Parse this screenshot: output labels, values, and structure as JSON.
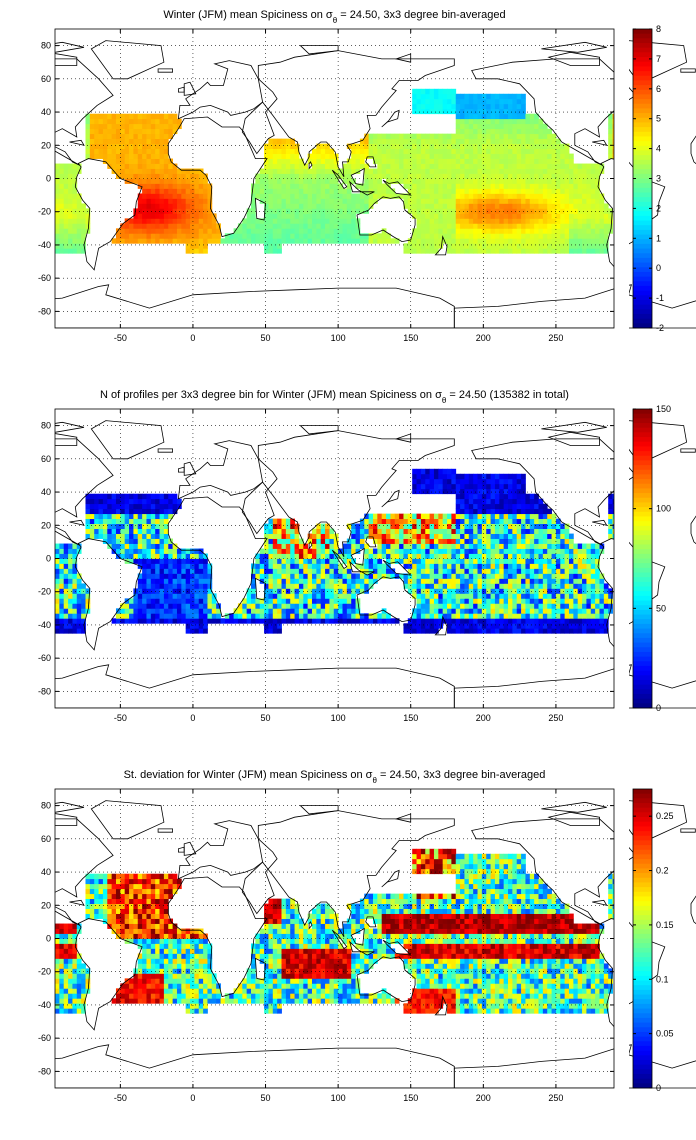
{
  "chart_data": [
    {
      "type": "heatmap",
      "title": "Winter (JFM) mean Spiciness on σθ = 24.50, 3x3 degree bin-averaged",
      "title_parts": {
        "pre": "Winter (JFM) mean Spiciness on σ",
        "sub": "θ",
        "post": " = 24.50, 3x3 degree bin-averaged"
      },
      "xlabel": "",
      "ylabel": "",
      "xlim": [
        -95,
        290
      ],
      "ylim": [
        -90,
        90
      ],
      "xticks": [
        "-50",
        "0",
        "50",
        "100",
        "150",
        "200",
        "250"
      ],
      "xtick_values": [
        -50,
        0,
        50,
        100,
        150,
        200,
        250
      ],
      "yticks": [
        "80",
        "60",
        "40",
        "20",
        "0",
        "-20",
        "-40",
        "-60",
        "-80"
      ],
      "ytick_values": [
        80,
        60,
        40,
        20,
        0,
        -20,
        -40,
        -60,
        -80
      ],
      "grid": true,
      "colorbar": {
        "range": [
          -2,
          8
        ],
        "ticks": [
          "8",
          "7",
          "6",
          "5",
          "4",
          "3",
          "2",
          "1",
          "0",
          "-1",
          "-2"
        ],
        "tick_values": [
          8,
          7,
          6,
          5,
          4,
          3,
          2,
          1,
          0,
          -1,
          -2
        ],
        "colormap": "jet"
      },
      "field": "mean"
    },
    {
      "type": "heatmap",
      "title": "N of profiles per 3x3 degree bin for Winter (JFM) mean Spiciness on σθ = 24.50 (135382 in total)",
      "title_parts": {
        "pre": "N of profiles per 3x3 degree bin for Winter (JFM) mean Spiciness on σ",
        "sub": "θ",
        "post": " = 24.50 (135382 in total)"
      },
      "xlabel": "",
      "ylabel": "",
      "xlim": [
        -95,
        290
      ],
      "ylim": [
        -90,
        90
      ],
      "xticks": [
        "-50",
        "0",
        "50",
        "100",
        "150",
        "200",
        "250"
      ],
      "xtick_values": [
        -50,
        0,
        50,
        100,
        150,
        200,
        250
      ],
      "yticks": [
        "80",
        "60",
        "40",
        "20",
        "0",
        "-20",
        "-40",
        "-60",
        "-80"
      ],
      "ytick_values": [
        80,
        60,
        40,
        20,
        0,
        -20,
        -40,
        -60,
        -80
      ],
      "grid": true,
      "colorbar": {
        "range": [
          0,
          150
        ],
        "ticks": [
          "150",
          "100",
          "50",
          "0"
        ],
        "tick_values": [
          150,
          100,
          50,
          0
        ],
        "colormap": "jet"
      },
      "field": "count"
    },
    {
      "type": "heatmap",
      "title": "St. deviation for Winter (JFM) mean Spiciness on σθ = 24.50, 3x3 degree bin-averaged",
      "title_parts": {
        "pre": "St. deviation for Winter (JFM) mean Spiciness on σ",
        "sub": "θ",
        "post": " = 24.50, 3x3 degree bin-averaged"
      },
      "xlabel": "",
      "ylabel": "",
      "xlim": [
        -95,
        290
      ],
      "ylim": [
        -90,
        90
      ],
      "xticks": [
        "-50",
        "0",
        "50",
        "100",
        "150",
        "200",
        "250"
      ],
      "xtick_values": [
        -50,
        0,
        50,
        100,
        150,
        200,
        250
      ],
      "yticks": [
        "80",
        "60",
        "40",
        "20",
        "0",
        "-20",
        "-40",
        "-60",
        "-80"
      ],
      "ytick_values": [
        80,
        60,
        40,
        20,
        0,
        -20,
        -40,
        -60,
        -80
      ],
      "grid": true,
      "colorbar": {
        "range": [
          0,
          0.275
        ],
        "ticks": [
          "0.25",
          "0.2",
          "0.15",
          "0.1",
          "0.05",
          "0"
        ],
        "tick_values": [
          0.25,
          0.2,
          0.15,
          0.1,
          0.05,
          0
        ],
        "colormap": "jet"
      },
      "field": "std"
    }
  ]
}
